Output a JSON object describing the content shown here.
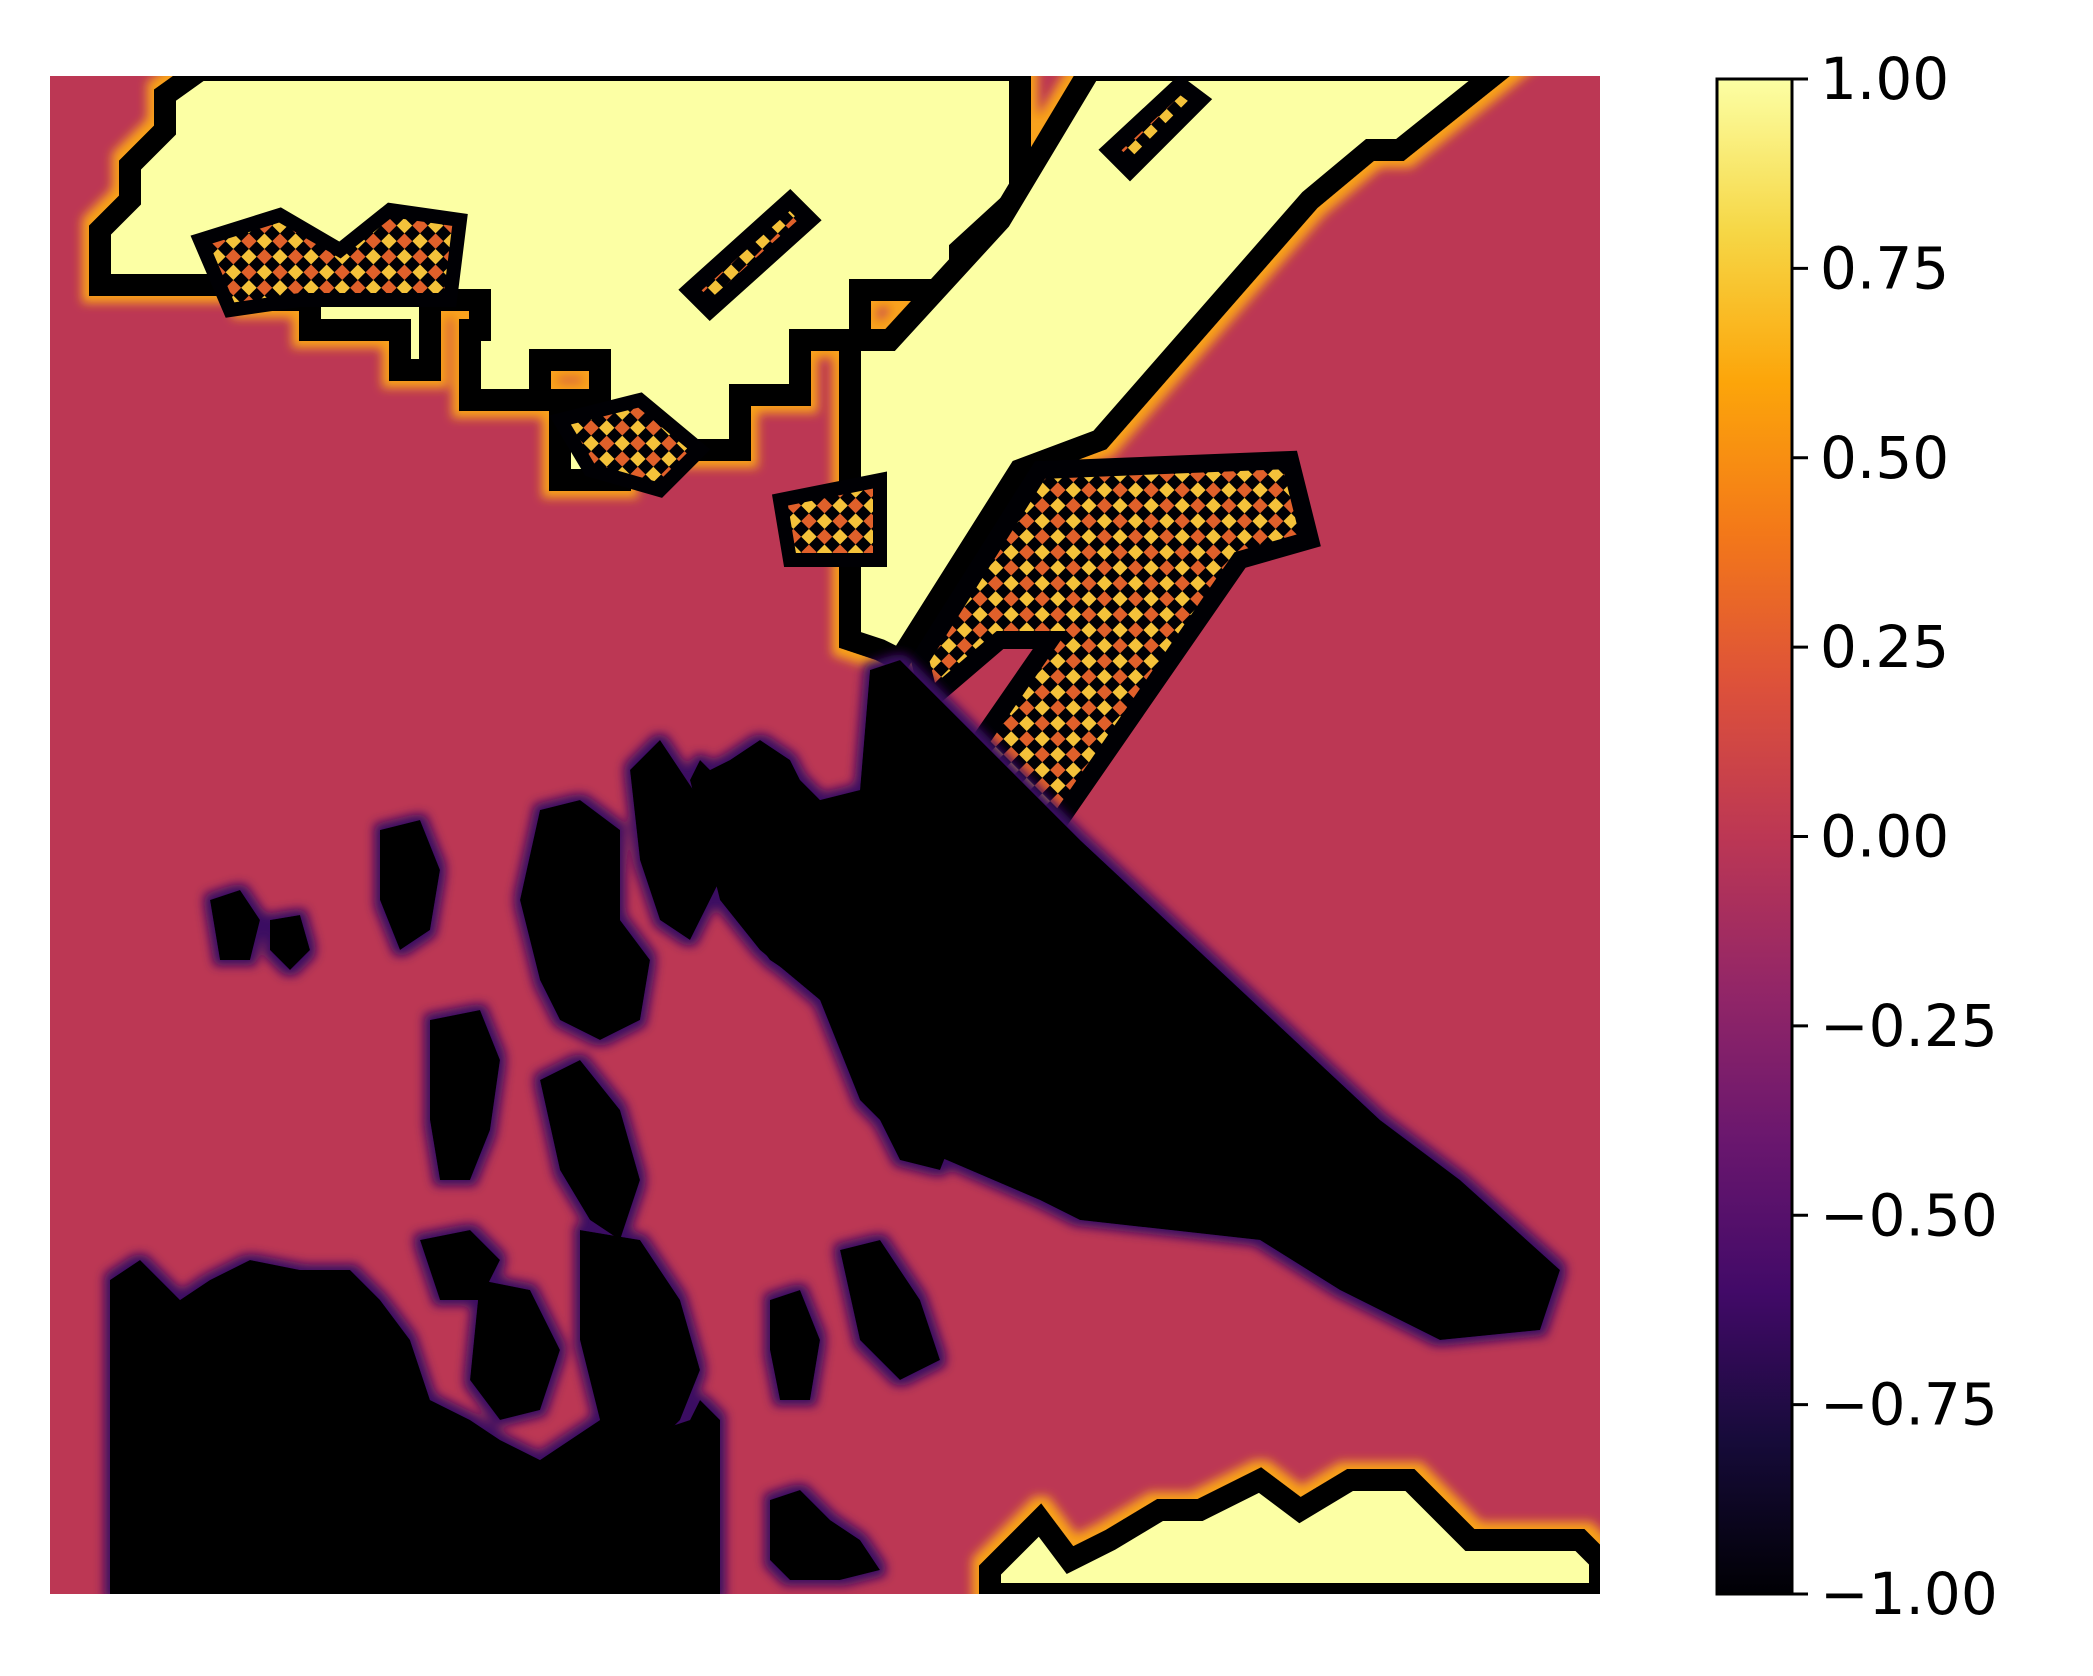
{
  "chart_data": {
    "type": "heatmap",
    "title": "",
    "xlabel": "",
    "ylabel": "",
    "axes_visible": false,
    "colormap": "inferno",
    "value_range": [
      -1.0,
      1.0
    ],
    "background_value": 0.0,
    "colorbar": {
      "placement": "right",
      "ticks": [
        {
          "value": 1.0,
          "label": "1.00"
        },
        {
          "value": 0.75,
          "label": "0.75"
        },
        {
          "value": 0.5,
          "label": "0.50"
        },
        {
          "value": 0.25,
          "label": "0.25"
        },
        {
          "value": 0.0,
          "label": "0.00"
        },
        {
          "value": -0.25,
          "label": "−0.25"
        },
        {
          "value": -0.5,
          "label": "−0.50"
        },
        {
          "value": -0.75,
          "label": "−0.75"
        },
        {
          "value": -1.0,
          "label": "−1.00"
        }
      ]
    },
    "regions": [
      {
        "name": "upper-left-positive-cluster",
        "value": 1.0
      },
      {
        "name": "upper-right-positive-band",
        "value": 1.0
      },
      {
        "name": "center-checker-pattern",
        "value": 1.0
      },
      {
        "name": "central-negative-diagonal-band",
        "value": -1.0
      },
      {
        "name": "scattered-negative-speckles",
        "value": -1.0
      },
      {
        "name": "lower-left-negative-block",
        "value": -1.0
      },
      {
        "name": "lower-right-positive-hill",
        "value": 1.0
      }
    ]
  }
}
